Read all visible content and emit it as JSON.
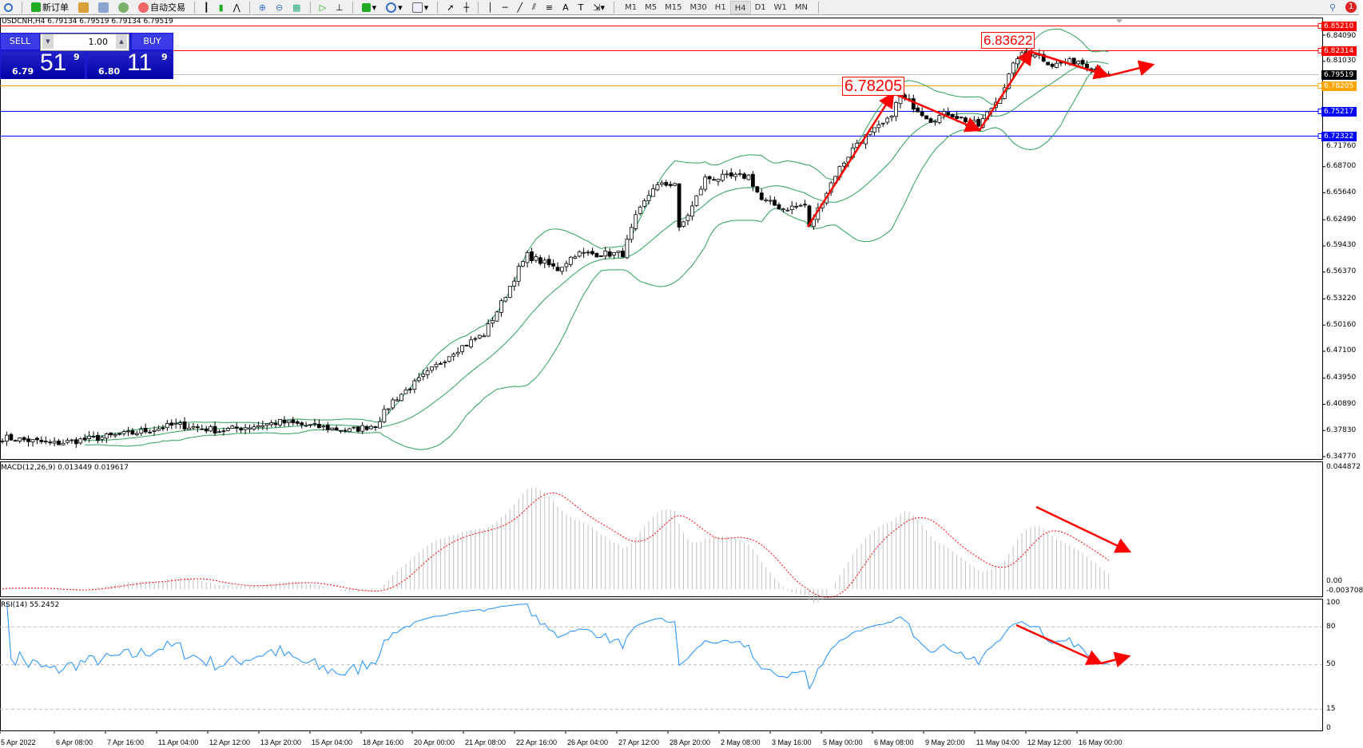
{
  "toolbar": {
    "new_order": "新订单",
    "auto_trading": "自动交易",
    "timeframes": [
      "M1",
      "M5",
      "M15",
      "M30",
      "H1",
      "H4",
      "D1",
      "W1",
      "MN"
    ],
    "active_timeframe": "H4",
    "notification_count": "1"
  },
  "chart": {
    "title": "USDCNH,H4  6.79134 6.79519 6.79134 6.79519",
    "symbol": "USDCNH",
    "timeframe": "H4"
  },
  "trade_panel": {
    "sell_label": "SELL",
    "buy_label": "BUY",
    "lot": "1.00",
    "sell_prefix": "6.79",
    "sell_big": "51",
    "sell_pip": "9",
    "buy_prefix": "6.80",
    "buy_big": "11",
    "buy_pip": "9"
  },
  "price_axis": {
    "ticks": [
      "6.84090",
      "6.81030",
      "6.71760",
      "6.68700",
      "6.65640",
      "6.62490",
      "6.59430",
      "6.56370",
      "6.53220",
      "6.50160",
      "6.47100",
      "6.43950",
      "6.40890",
      "6.37830",
      "6.34770"
    ],
    "range": [
      6.3477,
      6.8521
    ]
  },
  "price_lines": [
    {
      "price": "6.85210",
      "color": "#ff0000"
    },
    {
      "price": "6.82314",
      "color": "#ff0000"
    },
    {
      "price": "6.79519",
      "color": "#000000",
      "line_color": "#c0c0c0"
    },
    {
      "price": "6.78205",
      "color": "#ffa500"
    },
    {
      "price": "6.75217",
      "color": "#0000ff"
    },
    {
      "price": "6.72322",
      "color": "#0000ff"
    }
  ],
  "annotations": {
    "high_label": "6.83622",
    "low_label": "6.78205"
  },
  "macd": {
    "label": "MACD(12,26,9) 0.013449 0.019617",
    "max": "0.044872",
    "zero": "0.00",
    "min": "-0.003708"
  },
  "rsi": {
    "label": "RSI(14) 55.2452",
    "levels": [
      "100",
      "80",
      "50",
      "15",
      "0"
    ]
  },
  "time_axis": [
    "5 Apr 2022",
    "6 Apr 08:00",
    "7 Apr 16:00",
    "11 Apr 04:00",
    "12 Apr 12:00",
    "13 Apr 20:00",
    "15 Apr 04:00",
    "18 Apr 16:00",
    "20 Apr 00:00",
    "21 Apr 08:00",
    "22 Apr 16:00",
    "26 Apr 04:00",
    "27 Apr 12:00",
    "28 Apr 20:00",
    "2 May 08:00",
    "3 May 16:00",
    "5 May 00:00",
    "6 May 08:00",
    "9 May 20:00",
    "11 May 04:00",
    "12 May 12:00",
    "16 May 00:00"
  ],
  "chart_data": {
    "type": "candlestick",
    "bars": 256,
    "bollinger": "20,2",
    "colors": {
      "bull": "#ffffff",
      "bear": "#000000",
      "bands": "#2ca05a",
      "macd_hist": "#c0c0c0",
      "macd_signal": "#ff0000",
      "rsi": "#1e90ff",
      "arrows": "#ff0000"
    },
    "close_path": [
      [
        0,
        6.37
      ],
      [
        12,
        6.363
      ],
      [
        30,
        6.375
      ],
      [
        40,
        6.385
      ],
      [
        50,
        6.378
      ],
      [
        64,
        6.388
      ],
      [
        80,
        6.378
      ],
      [
        86,
        6.385
      ],
      [
        90,
        6.413
      ],
      [
        98,
        6.445
      ],
      [
        104,
        6.471
      ],
      [
        111,
        6.491
      ],
      [
        115,
        6.527
      ],
      [
        119,
        6.567
      ],
      [
        121,
        6.583
      ],
      [
        128,
        6.567
      ],
      [
        132,
        6.585
      ],
      [
        143,
        6.585
      ],
      [
        146,
        6.627
      ],
      [
        150,
        6.663
      ],
      [
        155,
        6.668
      ],
      [
        156,
        6.613
      ],
      [
        159,
        6.64
      ],
      [
        162,
        6.673
      ],
      [
        172,
        6.676
      ],
      [
        175,
        6.648
      ],
      [
        180,
        6.638
      ],
      [
        185,
        6.642
      ],
      [
        186,
        6.616
      ],
      [
        192,
        6.678
      ],
      [
        197,
        6.715
      ],
      [
        204,
        6.74
      ],
      [
        207,
        6.77
      ],
      [
        212,
        6.75
      ],
      [
        214,
        6.742
      ],
      [
        218,
        6.75
      ],
      [
        225,
        6.735
      ],
      [
        230,
        6.77
      ],
      [
        234,
        6.816
      ],
      [
        238,
        6.82
      ],
      [
        242,
        6.806
      ],
      [
        248,
        6.811
      ],
      [
        255,
        6.795
      ]
    ]
  }
}
